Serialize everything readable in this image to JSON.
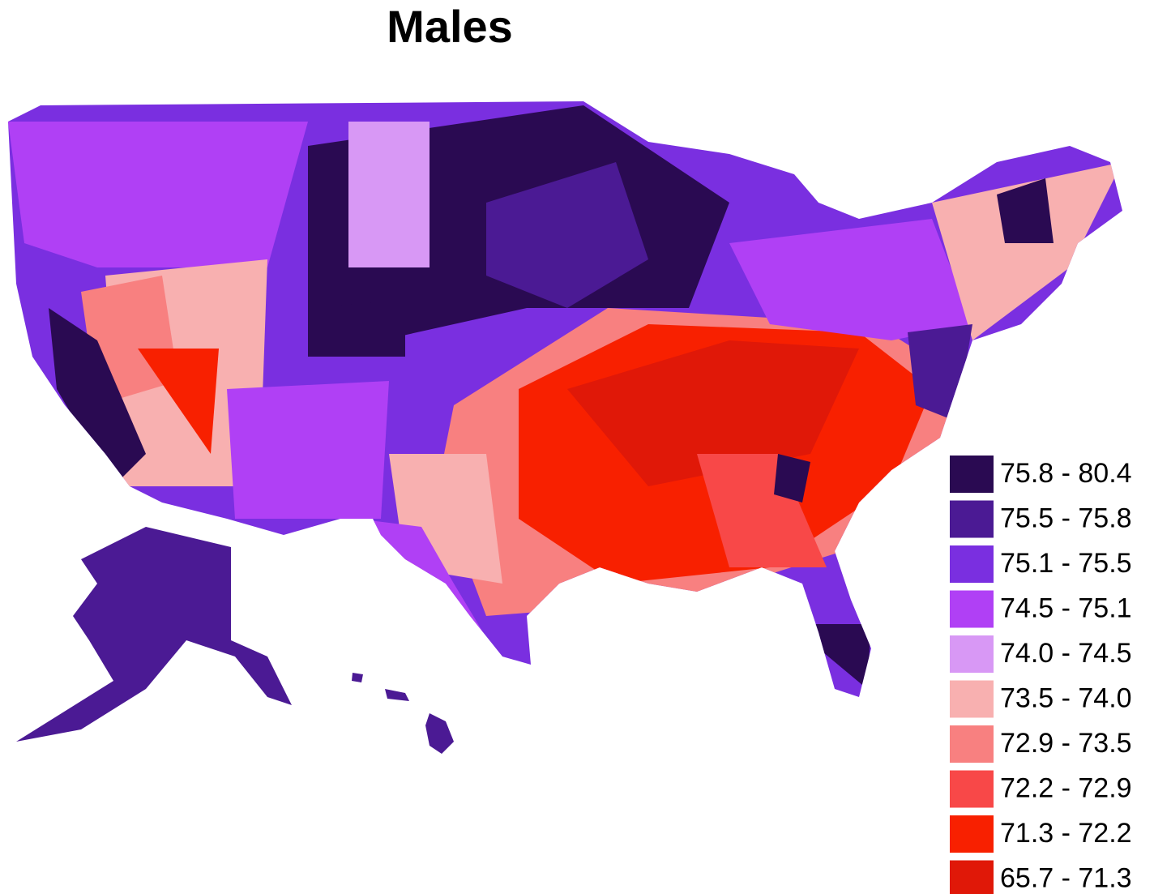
{
  "title": "Males",
  "legend": [
    {
      "label": "75.8 - 80.4",
      "color": "#2a0a52"
    },
    {
      "label": "75.5 - 75.8",
      "color": "#4b1a94"
    },
    {
      "label": "75.1 - 75.5",
      "color": "#7a2fe0"
    },
    {
      "label": "74.5 - 75.1",
      "color": "#b040f5"
    },
    {
      "label": "74.0 - 74.5",
      "color": "#d898f5"
    },
    {
      "label": "73.5 - 74.0",
      "color": "#f8b0b0"
    },
    {
      "label": "72.9 - 73.5",
      "color": "#f88080"
    },
    {
      "label": "72.2 - 72.9",
      "color": "#f84848"
    },
    {
      "label": "71.3 - 72.2",
      "color": "#f82000"
    },
    {
      "label": "65.7 - 71.3",
      "color": "#e01808"
    }
  ]
}
